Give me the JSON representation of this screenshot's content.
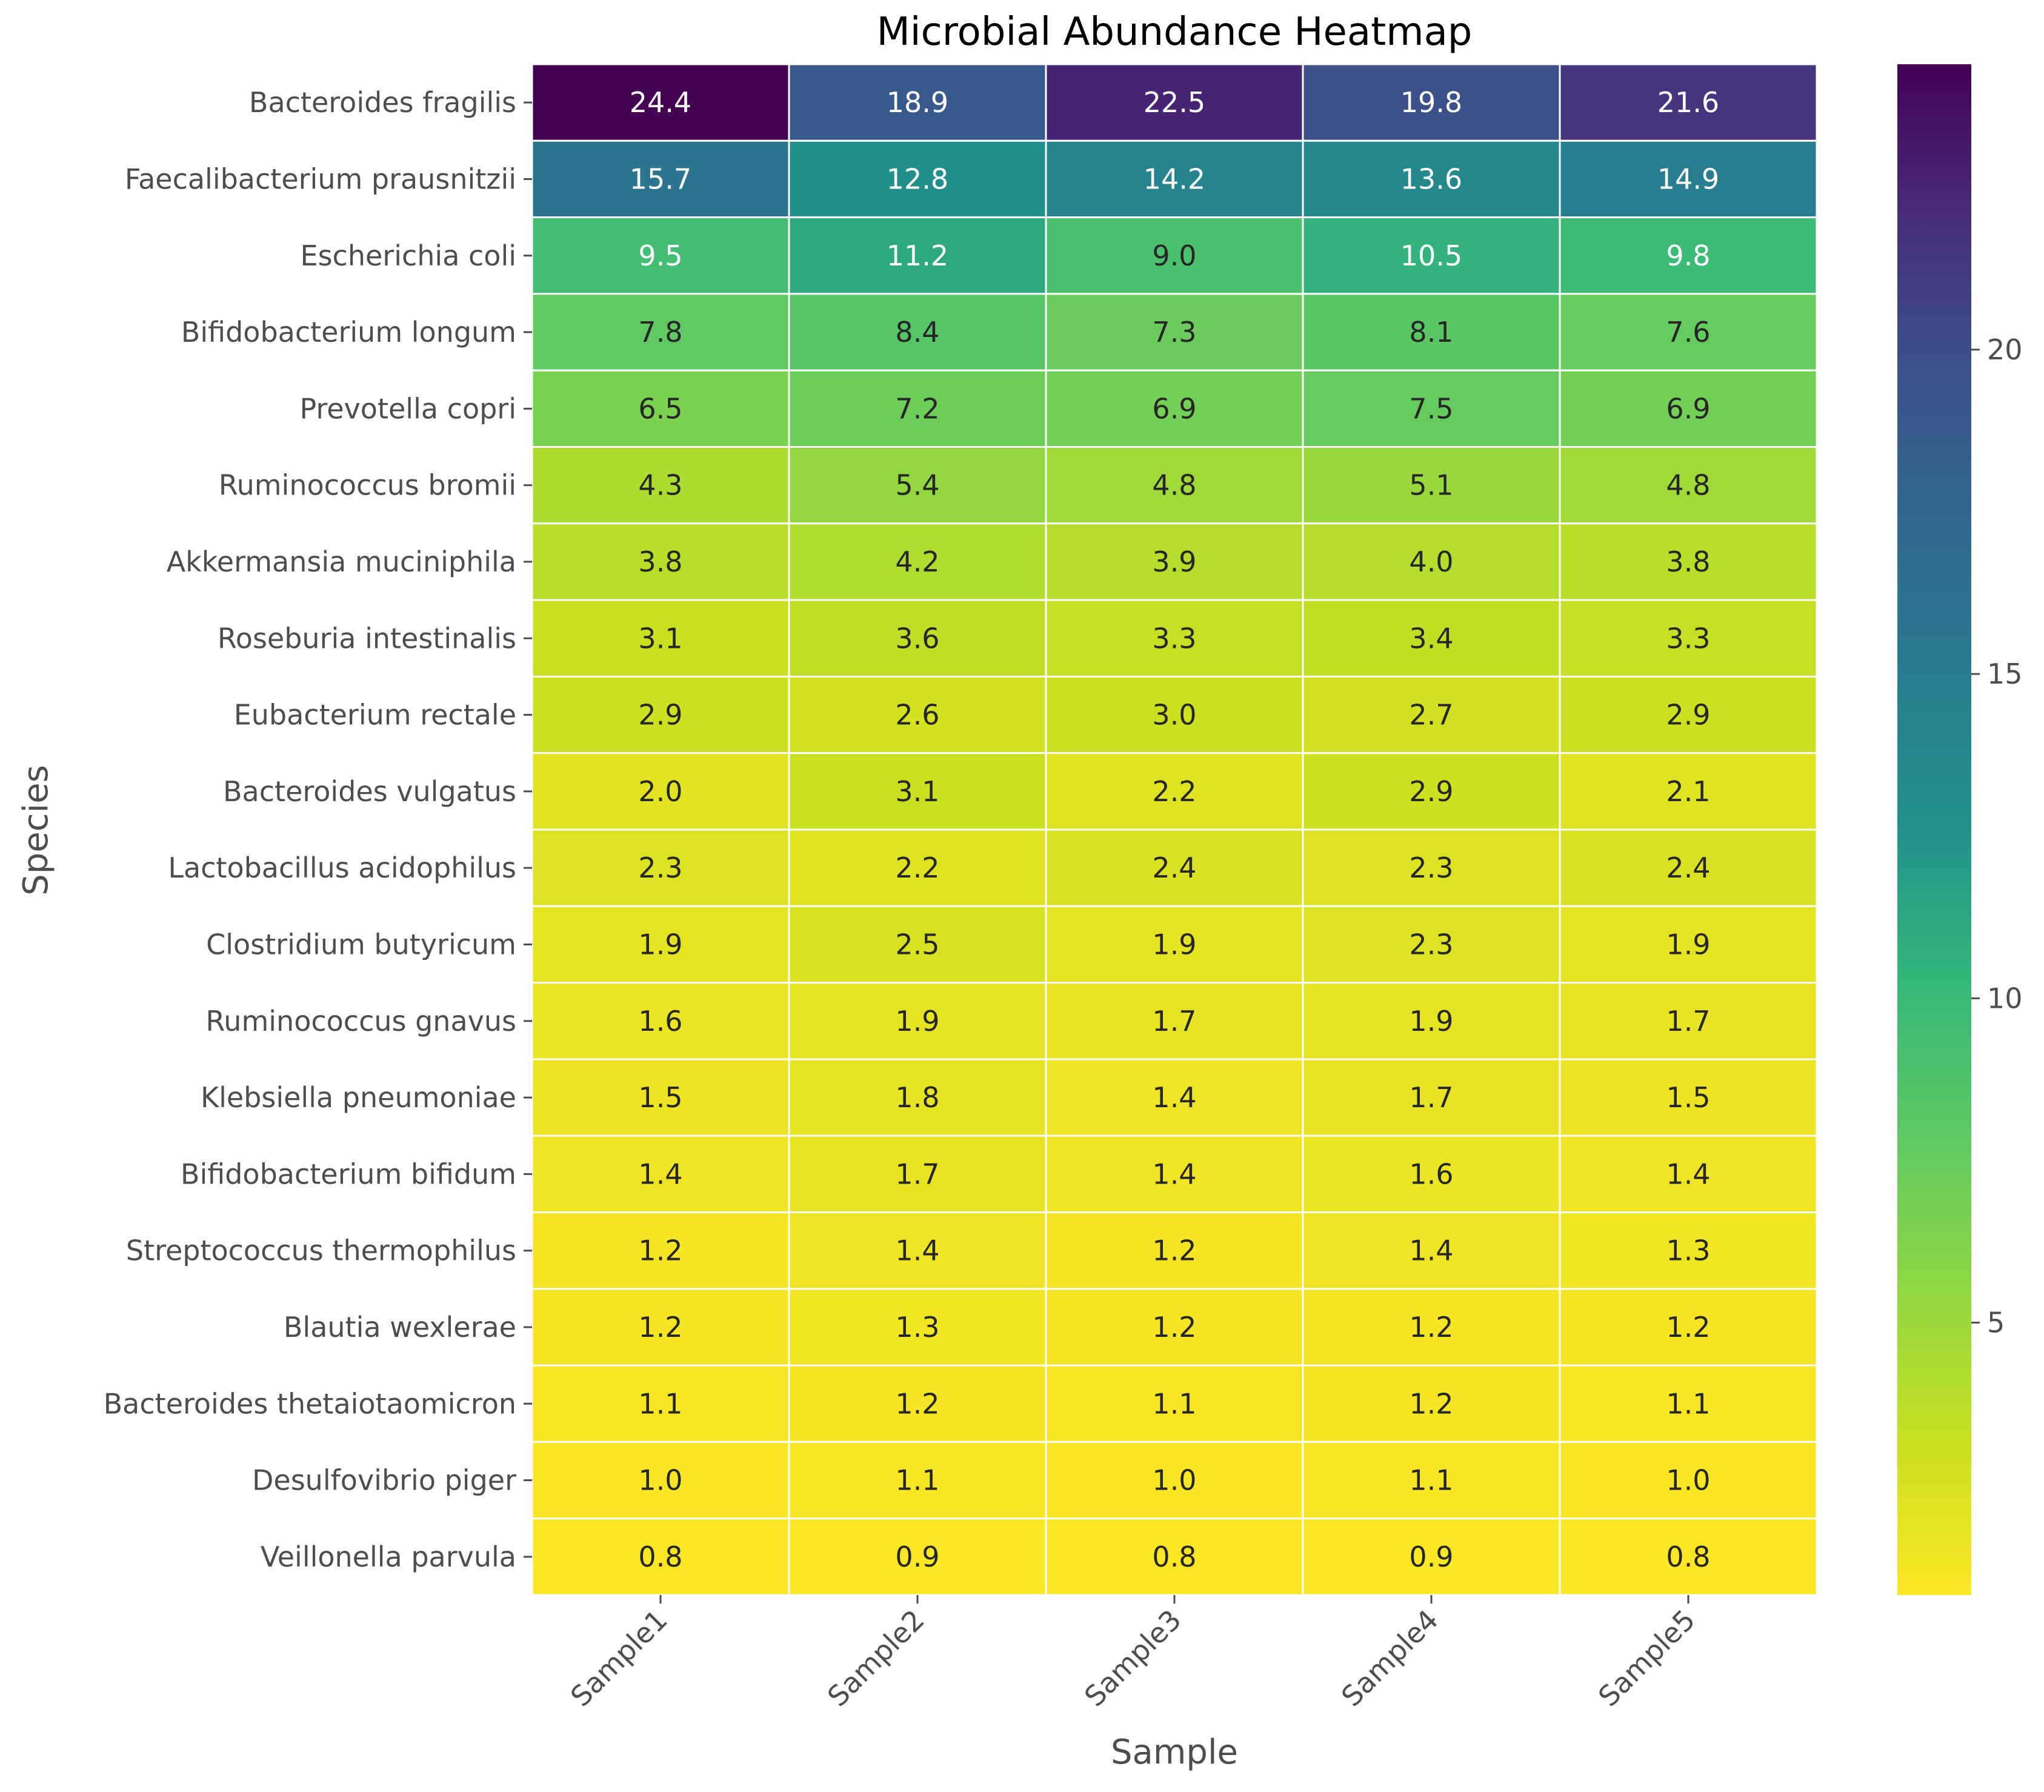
{
  "chart_data": {
    "type": "heatmap",
    "title": "Microbial Abundance Heatmap",
    "xlabel": "Sample",
    "ylabel": "Species",
    "columns": [
      "Sample1",
      "Sample2",
      "Sample3",
      "Sample4",
      "Sample5"
    ],
    "rows": [
      "Bacteroides fragilis",
      "Faecalibacterium prausnitzii",
      "Escherichia coli",
      "Bifidobacterium longum",
      "Prevotella copri",
      "Ruminococcus bromii",
      "Akkermansia muciniphila",
      "Roseburia intestinalis",
      "Eubacterium rectale",
      "Bacteroides vulgatus",
      "Lactobacillus acidophilus",
      "Clostridium butyricum",
      "Ruminococcus gnavus",
      "Klebsiella pneumoniae",
      "Bifidobacterium bifidum",
      "Streptococcus thermophilus",
      "Blautia wexlerae",
      "Bacteroides thetaiotaomicron",
      "Desulfovibrio piger",
      "Veillonella parvula"
    ],
    "values": [
      [
        24.4,
        18.9,
        22.5,
        19.8,
        21.6
      ],
      [
        15.7,
        12.8,
        14.2,
        13.6,
        14.9
      ],
      [
        9.5,
        11.2,
        9.0,
        10.5,
        9.8
      ],
      [
        7.8,
        8.4,
        7.3,
        8.1,
        7.6
      ],
      [
        6.5,
        7.2,
        6.9,
        7.5,
        6.9
      ],
      [
        4.3,
        5.4,
        4.8,
        5.1,
        4.8
      ],
      [
        3.8,
        4.2,
        3.9,
        4.0,
        3.8
      ],
      [
        3.1,
        3.6,
        3.3,
        3.4,
        3.3
      ],
      [
        2.9,
        2.6,
        3.0,
        2.7,
        2.9
      ],
      [
        2.0,
        3.1,
        2.2,
        2.9,
        2.1
      ],
      [
        2.3,
        2.2,
        2.4,
        2.3,
        2.4
      ],
      [
        1.9,
        2.5,
        1.9,
        2.3,
        1.9
      ],
      [
        1.6,
        1.9,
        1.7,
        1.9,
        1.7
      ],
      [
        1.5,
        1.8,
        1.4,
        1.7,
        1.5
      ],
      [
        1.4,
        1.7,
        1.4,
        1.6,
        1.4
      ],
      [
        1.2,
        1.4,
        1.2,
        1.4,
        1.3
      ],
      [
        1.2,
        1.3,
        1.2,
        1.2,
        1.2
      ],
      [
        1.1,
        1.2,
        1.1,
        1.2,
        1.1
      ],
      [
        1.0,
        1.1,
        1.0,
        1.1,
        1.0
      ],
      [
        0.8,
        0.9,
        0.8,
        0.9,
        0.8
      ]
    ],
    "value_format": "0.0",
    "colormap": "viridis (reversed)",
    "color_range": [
      0.8,
      24.4
    ],
    "colorbar_ticks": [
      5,
      10,
      15,
      20
    ],
    "grid": false,
    "legend": "colorbar right",
    "colors": {
      "cell_border": "#ffffff",
      "text_dark_bg": "#ffffff",
      "text_light_bg": "#262626",
      "axis_text": "#4d4d4d",
      "title": "#000000"
    }
  }
}
